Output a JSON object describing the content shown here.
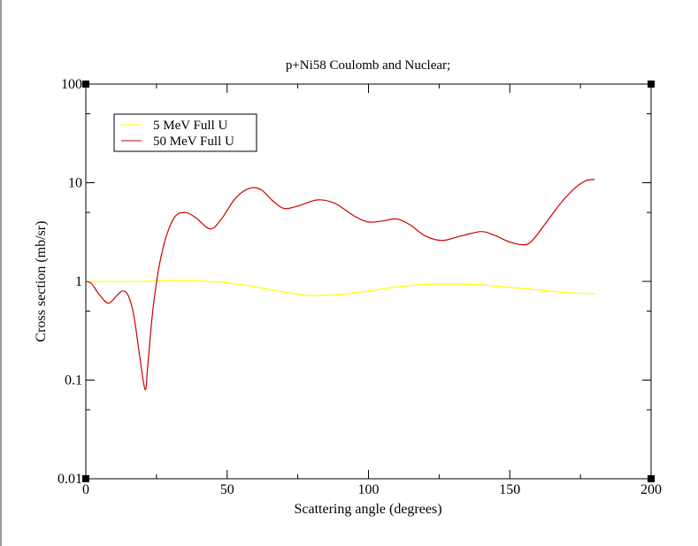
{
  "chart_data": {
    "type": "line",
    "title": "p+Ni58 Coulomb and Nuclear;",
    "xlabel": "Scattering angle (degrees)",
    "ylabel": "Cross section (mb/sr)",
    "xlim": [
      0,
      200
    ],
    "ylim": [
      0.01,
      100
    ],
    "yscale": "log",
    "x_ticks": [
      "0",
      "50",
      "100",
      "150",
      "200"
    ],
    "y_ticks": [
      "0.01",
      "0.1",
      "1",
      "10",
      "100"
    ],
    "legend_position": "top-left",
    "series": [
      {
        "name": "5 MeV Full U",
        "color": "#ffff00",
        "points": [
          [
            0,
            1.0
          ],
          [
            20,
            1.0
          ],
          [
            30,
            1.02
          ],
          [
            40,
            1.01
          ],
          [
            50,
            0.97
          ],
          [
            60,
            0.88
          ],
          [
            70,
            0.78
          ],
          [
            80,
            0.72
          ],
          [
            90,
            0.74
          ],
          [
            100,
            0.8
          ],
          [
            110,
            0.88
          ],
          [
            120,
            0.93
          ],
          [
            130,
            0.94
          ],
          [
            140,
            0.92
          ],
          [
            150,
            0.87
          ],
          [
            160,
            0.82
          ],
          [
            170,
            0.77
          ],
          [
            180,
            0.75
          ]
        ]
      },
      {
        "name": "50 MeV Full U",
        "color": "#cc0000",
        "points": [
          [
            0,
            1.0
          ],
          [
            2,
            0.95
          ],
          [
            5,
            0.72
          ],
          [
            8,
            0.6
          ],
          [
            11,
            0.72
          ],
          [
            13,
            0.8
          ],
          [
            15,
            0.72
          ],
          [
            17,
            0.45
          ],
          [
            19,
            0.18
          ],
          [
            21,
            0.08
          ],
          [
            22,
            0.15
          ],
          [
            24,
            0.6
          ],
          [
            27,
            2.0
          ],
          [
            31,
            4.3
          ],
          [
            35,
            5.0
          ],
          [
            39,
            4.4
          ],
          [
            44,
            3.4
          ],
          [
            48,
            4.3
          ],
          [
            53,
            7.0
          ],
          [
            58,
            8.8
          ],
          [
            62,
            8.5
          ],
          [
            66,
            6.6
          ],
          [
            70,
            5.5
          ],
          [
            75,
            5.8
          ],
          [
            82,
            6.7
          ],
          [
            88,
            6.2
          ],
          [
            95,
            4.6
          ],
          [
            100,
            4.0
          ],
          [
            105,
            4.1
          ],
          [
            110,
            4.3
          ],
          [
            115,
            3.7
          ],
          [
            120,
            2.9
          ],
          [
            126,
            2.6
          ],
          [
            133,
            2.9
          ],
          [
            140,
            3.2
          ],
          [
            145,
            2.9
          ],
          [
            150,
            2.5
          ],
          [
            155,
            2.35
          ],
          [
            158,
            2.6
          ],
          [
            163,
            4.0
          ],
          [
            168,
            6.2
          ],
          [
            173,
            8.8
          ],
          [
            177,
            10.5
          ],
          [
            180,
            10.8
          ]
        ]
      }
    ]
  }
}
